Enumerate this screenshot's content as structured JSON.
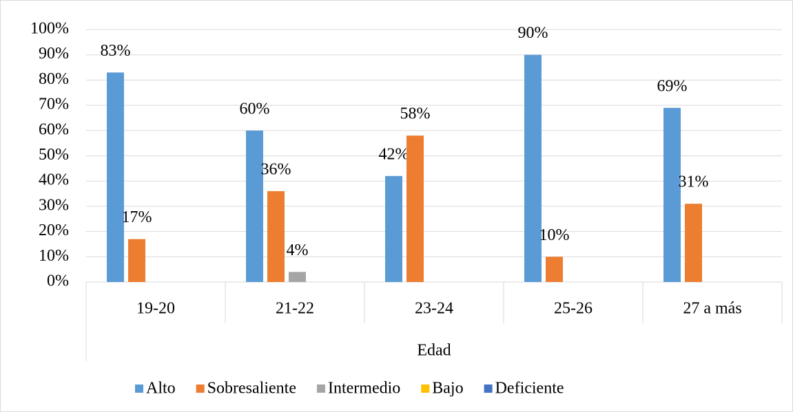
{
  "chart_data": {
    "type": "bar",
    "x_label": "Edad",
    "categories": [
      "19-20",
      "21-22",
      "23-24",
      "25-26",
      "27 a más"
    ],
    "series": [
      {
        "name": "Alto",
        "color": "#5b9bd5",
        "values": [
          83,
          60,
          42,
          90,
          69
        ],
        "value_labels": [
          "83%",
          "60%",
          "42%",
          "90%",
          "69%"
        ]
      },
      {
        "name": "Sobresaliente",
        "color": "#ed7d31",
        "values": [
          17,
          36,
          58,
          10,
          31
        ],
        "value_labels": [
          "17%",
          "36%",
          "58%",
          "10%",
          "31%"
        ]
      },
      {
        "name": "Intermedio",
        "color": "#a5a5a5",
        "values": [
          0,
          4,
          0,
          0,
          0
        ],
        "value_labels": [
          null,
          "4%",
          null,
          null,
          null
        ]
      },
      {
        "name": "Bajo",
        "color": "#ffc000",
        "values": [
          0,
          0,
          0,
          0,
          0
        ],
        "value_labels": [
          null,
          null,
          null,
          null,
          null
        ]
      },
      {
        "name": "Deficiente",
        "color": "#4472c4",
        "values": [
          0,
          0,
          0,
          0,
          0
        ],
        "value_labels": [
          null,
          null,
          null,
          null,
          null
        ]
      }
    ],
    "ylim": [
      0,
      100
    ],
    "yticks": [
      {
        "value": 0,
        "label": "0%"
      },
      {
        "value": 10,
        "label": "10%"
      },
      {
        "value": 20,
        "label": "20%"
      },
      {
        "value": 30,
        "label": "30%"
      },
      {
        "value": 40,
        "label": "40%"
      },
      {
        "value": 50,
        "label": "50%"
      },
      {
        "value": 60,
        "label": "60%"
      },
      {
        "value": 70,
        "label": "70%"
      },
      {
        "value": 80,
        "label": "80%"
      },
      {
        "value": 90,
        "label": "90%"
      },
      {
        "value": 100,
        "label": "100%"
      }
    ],
    "grid": true,
    "legend": "bottom"
  }
}
